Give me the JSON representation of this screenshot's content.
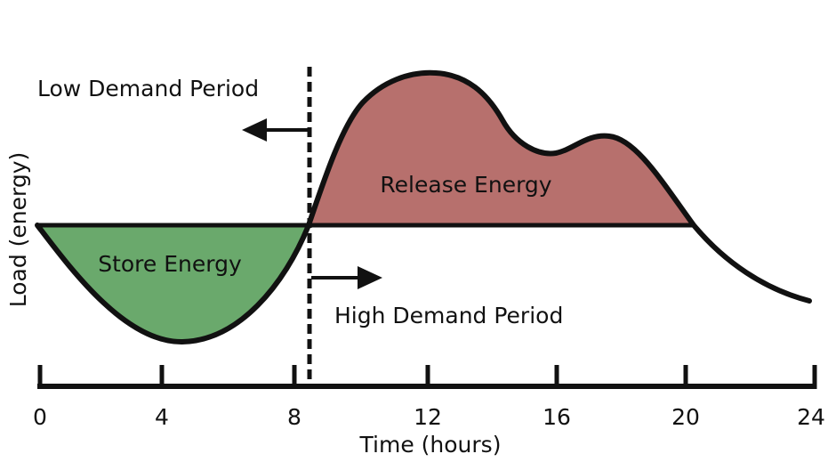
{
  "labels": {
    "low_demand": "Low Demand Period",
    "high_demand": "High Demand Period",
    "store_energy": "Store Energy",
    "release_energy": "Release Energy",
    "x_axis_title": "Time (hours)",
    "y_axis_title": "Load (energy)"
  },
  "x_ticks": [
    "0",
    "4",
    "8",
    "12",
    "16",
    "20",
    "24"
  ],
  "colors": {
    "store_fill": "#6aa96c",
    "release_fill": "#b7706d",
    "line": "#111111"
  }
}
